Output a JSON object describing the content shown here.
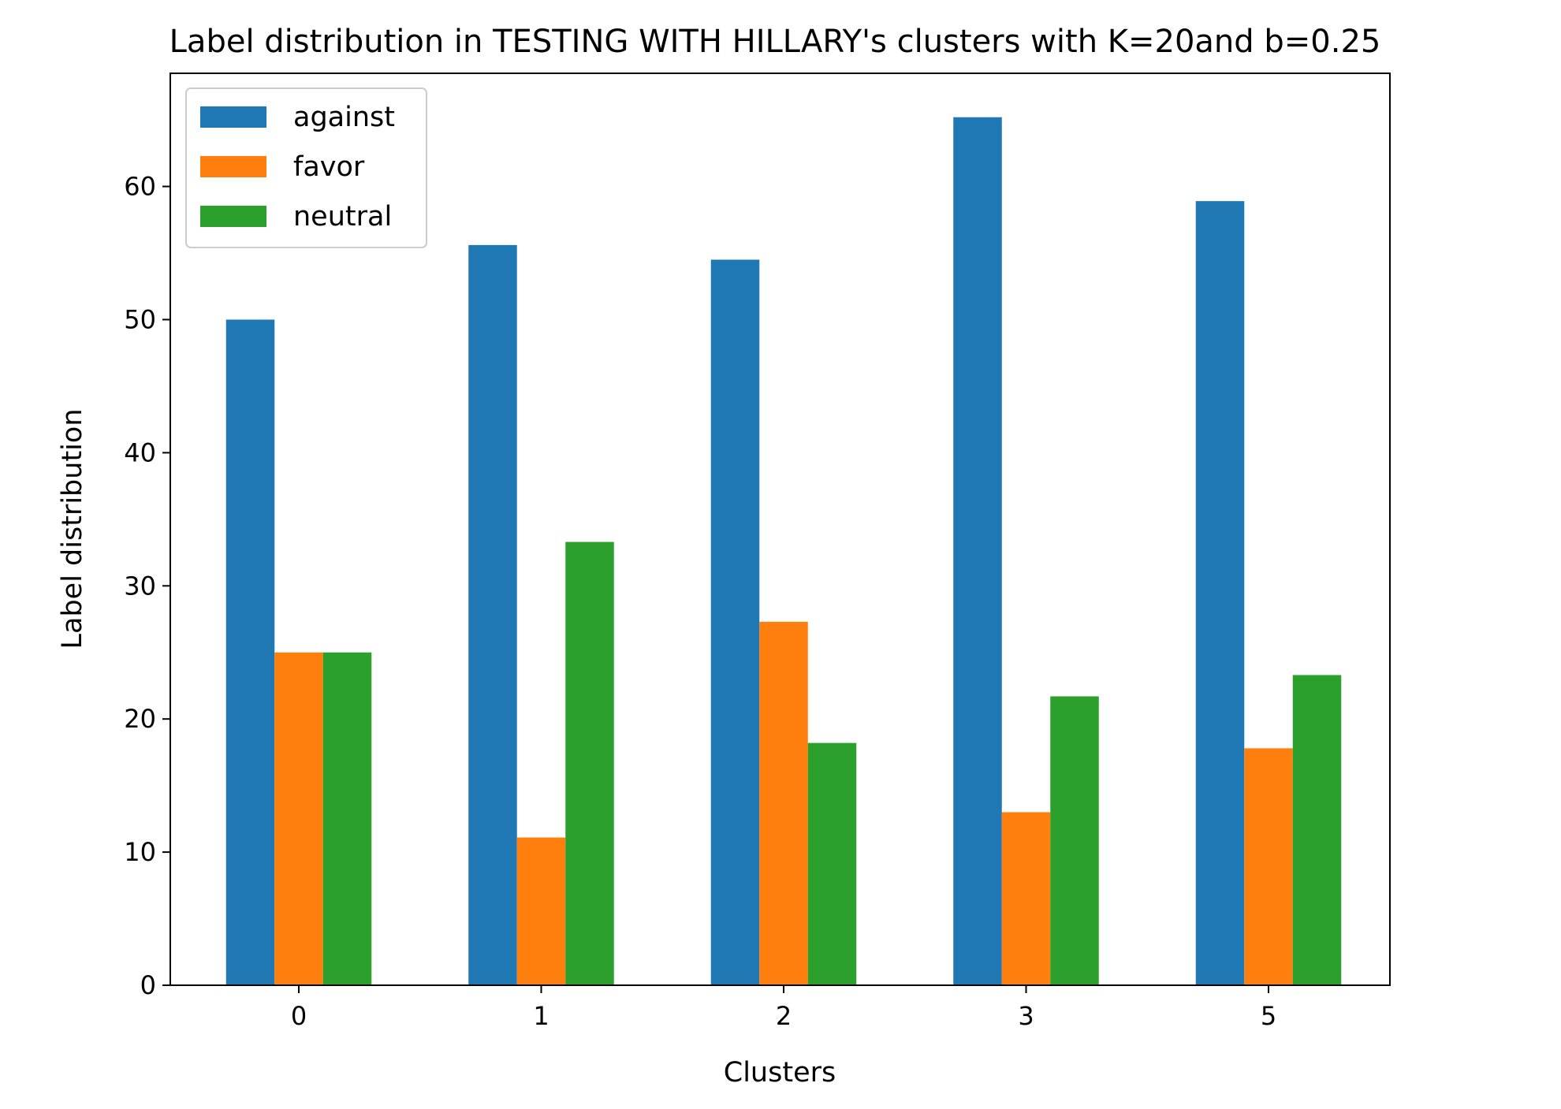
{
  "chart_data": {
    "type": "bar",
    "title": "Label distribution in TESTING WITH HILLARY's clusters with K=20and b=0.25",
    "xlabel": "Clusters",
    "ylabel": "Label distribution",
    "categories": [
      "0",
      "1",
      "2",
      "3",
      "5"
    ],
    "series": [
      {
        "name": "against",
        "color": "#1f77b4",
        "values": [
          50.0,
          55.6,
          54.5,
          65.2,
          58.9
        ]
      },
      {
        "name": "favor",
        "color": "#ff7f0e",
        "values": [
          25.0,
          11.1,
          27.3,
          13.0,
          17.8
        ]
      },
      {
        "name": "neutral",
        "color": "#2ca02c",
        "values": [
          25.0,
          33.3,
          18.2,
          21.7,
          23.3
        ]
      }
    ],
    "ylim": [
      0,
      68.5
    ],
    "yticks": [
      0,
      10,
      20,
      30,
      40,
      50,
      60
    ],
    "grid": false,
    "legend_position": "upper-left"
  }
}
